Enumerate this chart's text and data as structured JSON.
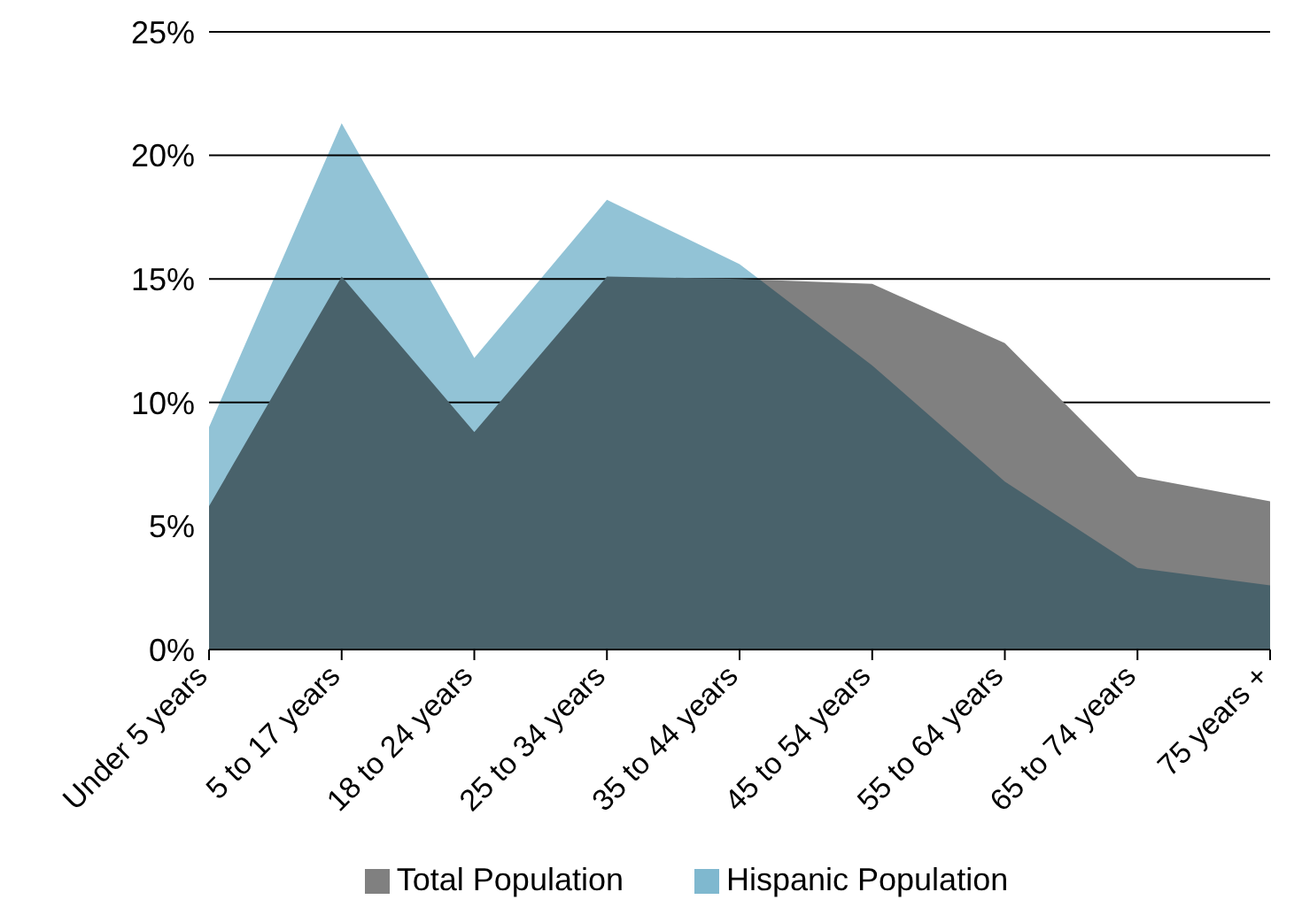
{
  "chart_data": {
    "type": "area",
    "categories": [
      "Under 5 years",
      "5 to 17 years",
      "18 to 24 years",
      "25 to 34 years",
      "35 to 44 years",
      "45 to 54 years",
      "55 to 64 years",
      "65 to 74 years",
      "75 years +"
    ],
    "series": [
      {
        "name": "Total Population",
        "color": "#808080",
        "values": [
          5.8,
          15.1,
          8.8,
          15.1,
          15.0,
          14.8,
          12.4,
          7.0,
          6.0
        ]
      },
      {
        "name": "Hispanic Population",
        "color": "#7fb8cf",
        "values": [
          9.0,
          21.3,
          11.8,
          18.2,
          15.6,
          11.5,
          6.8,
          3.3,
          2.6
        ]
      }
    ],
    "ylim": [
      0,
      25
    ],
    "yticks": [
      {
        "value": 0,
        "label": "0%"
      },
      {
        "value": 5,
        "label": "5%"
      },
      {
        "value": 10,
        "label": "10%"
      },
      {
        "value": 15,
        "label": "15%"
      },
      {
        "value": 20,
        "label": "20%"
      },
      {
        "value": 25,
        "label": "25%"
      }
    ],
    "grid": "y",
    "legend": "bottom"
  }
}
